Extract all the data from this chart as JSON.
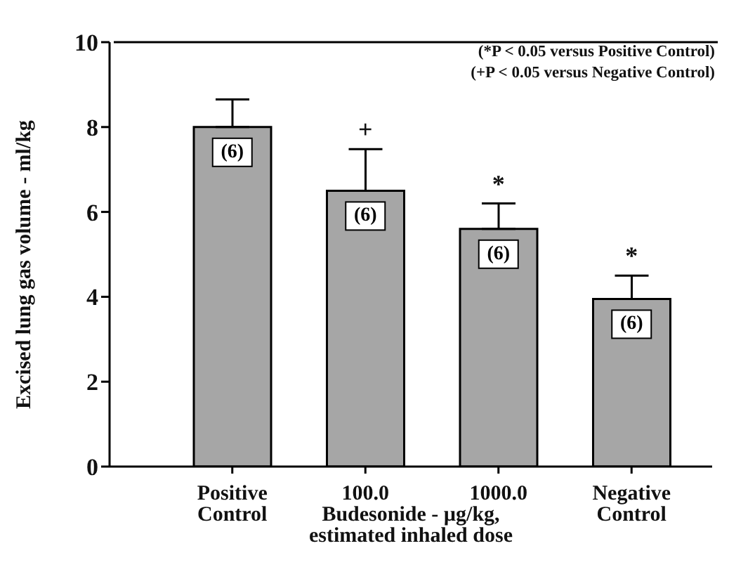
{
  "chart_data": {
    "type": "bar",
    "ylabel": "Excised lung gas volume - ml/kg",
    "xlabel": "Budesonide - µg/kg, estimated inhaled dose",
    "categories": [
      "Positive Control",
      "100.0",
      "1000.0",
      "Negative Control"
    ],
    "values": [
      8.0,
      6.5,
      5.6,
      3.95
    ],
    "errors": [
      [
        8.0,
        8.65
      ],
      [
        6.5,
        7.48
      ],
      [
        5.6,
        6.2
      ],
      [
        3.95,
        4.5
      ]
    ],
    "color": "#a6a6a6",
    "ylim": [
      0,
      10
    ],
    "yticks": [
      0,
      2,
      4,
      6,
      8,
      10
    ],
    "grid": false,
    "legend": false,
    "annotations": [
      "(*P < 0.05 versus Positive Control)",
      "(+P < 0.05 versus Negative Control)",
      {
        "text": "(6)",
        "x": "Positive Control",
        "y": 8.0
      },
      {
        "text": "(6)",
        "x": "100.0",
        "y": 6.5
      },
      {
        "text": "(6)",
        "x": "1000.0",
        "y": 5.6
      },
      {
        "text": "(6)",
        "x": "Negative Control",
        "y": 3.95
      },
      {
        "text": "+",
        "x": "100.0",
        "y": 7.48
      },
      {
        "text": "*",
        "x": "1000.0",
        "y": 6.2
      },
      {
        "text": "*",
        "x": "Negative Control",
        "y": 4.5
      }
    ]
  }
}
